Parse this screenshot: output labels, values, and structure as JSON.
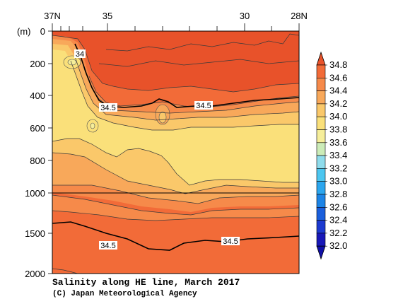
{
  "chart_data": {
    "type": "heatmap",
    "title": "Salinity along HE line, March 2017",
    "credit": "(C) Japan Meteorological Agency",
    "x_tick_labels": [
      "37N",
      "35",
      "30",
      "28N"
    ],
    "x_ticks_lat": [
      37,
      35,
      30,
      28
    ],
    "xlim": [
      37,
      28
    ],
    "depth_unit": "(m)",
    "y_tick_labels": [
      "0",
      "200",
      "400",
      "600",
      "800",
      "1000",
      "1500",
      "2000"
    ],
    "y_ticks_depth": [
      0,
      200,
      400,
      600,
      800,
      1000,
      1500,
      2000
    ],
    "ylim": [
      0,
      2000
    ],
    "y_scale_note": "0-1000 m upper panel, 1000-2000 m lower panel",
    "contour_labels": [
      {
        "text": "34",
        "lat": 36.3,
        "depth": 150
      },
      {
        "text": "34.5",
        "lat": 35.0,
        "depth": 470
      },
      {
        "text": "34.5",
        "lat": 31.7,
        "depth": 460
      },
      {
        "text": "34.5",
        "lat": 35.0,
        "depth": 1630
      },
      {
        "text": "34.5",
        "lat": 30.8,
        "depth": 1590
      }
    ],
    "colorbar": {
      "labels": [
        "34.8",
        "34.6",
        "34.4",
        "34.2",
        "34.0",
        "33.8",
        "33.6",
        "33.4",
        "33.2",
        "33.0",
        "32.8",
        "32.6",
        "32.4",
        "32.2",
        "32.0"
      ],
      "colors": [
        "#e8522a",
        "#f26b38",
        "#f68a4a",
        "#f8a85a",
        "#fac86a",
        "#fae07a",
        "#f6ee9a",
        "#ccecb8",
        "#8fdcec",
        "#4cc6f0",
        "#2ba6ee",
        "#1c84e6",
        "#1a5fdc",
        "#1c3ad0",
        "#1818b8"
      ]
    },
    "levels_colors": {
      "lt_33.8": "#fae07a",
      "33.8_34.0": "#fac86a",
      "34.0_34.2": "#f8a85a",
      "34.2_34.4": "#f68a4a",
      "34.4_34.6": "#f26b38",
      "gt_34.6": "#e8522a"
    }
  }
}
